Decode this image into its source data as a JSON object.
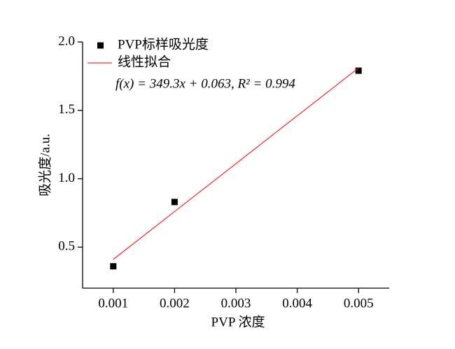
{
  "chart_data": {
    "type": "scatter",
    "x_label": "PVP 浓度",
    "y_label": "吸光度/a.u.",
    "annotation": "f(x) = 349.3x + 0.063, R² = 0.994",
    "xlim": [
      0.0005,
      0.0055
    ],
    "xticks": [
      0.001,
      0.002,
      0.003,
      0.004,
      0.005
    ],
    "ylim": [
      0.2,
      2.0
    ],
    "yticks": [
      0.5,
      {
        "value": 1.0,
        "label": "1.0"
      },
      1.5,
      {
        "value": 2.0,
        "label": "2.0"
      }
    ],
    "series": [
      {
        "name": "PVP标样吸光度",
        "color": "#000000",
        "marker": "square",
        "x": [
          0.001,
          0.002,
          0.005
        ],
        "values": [
          0.36,
          0.83,
          1.79
        ]
      },
      {
        "name": "线性拟合",
        "color": "#ff0000",
        "line": true,
        "x": [
          0.001,
          0.005
        ],
        "values": [
          0.41,
          1.81
        ]
      }
    ],
    "legend": "top-left"
  }
}
